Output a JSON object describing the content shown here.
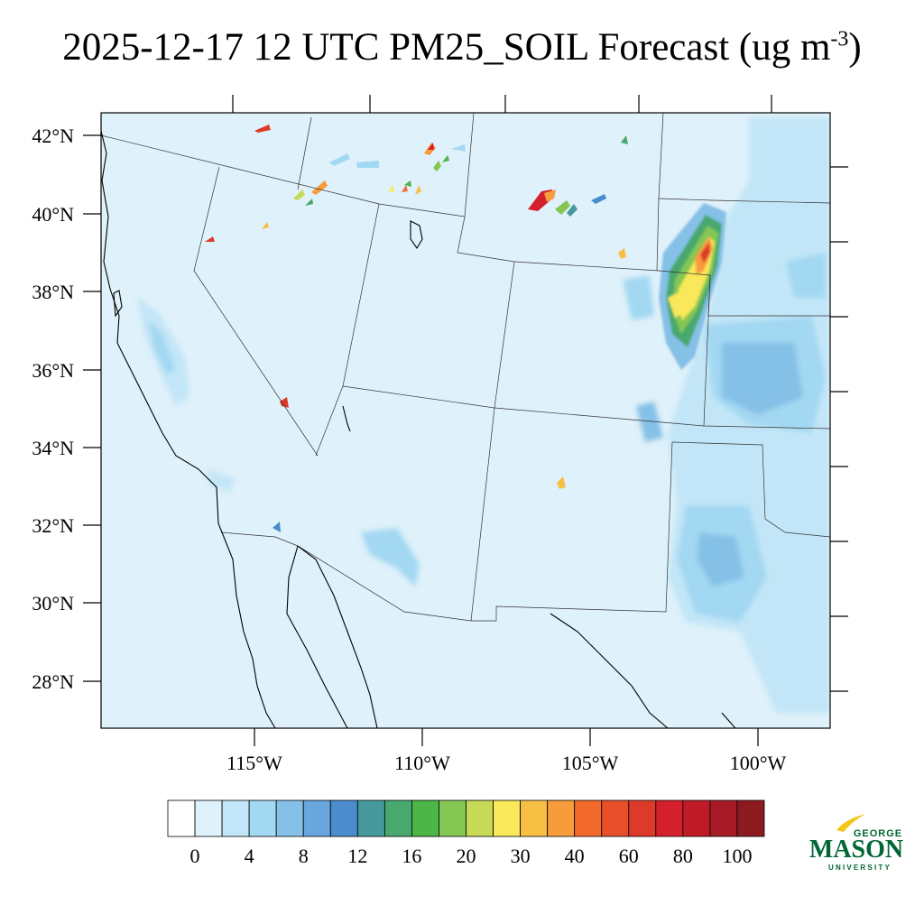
{
  "title": {
    "main": "2025-12-17 12 UTC PM25_SOIL Forecast (ug m",
    "superscript": "-3",
    "close": ")"
  },
  "map": {
    "lat_labels": [
      "42°N",
      "40°N",
      "38°N",
      "36°N",
      "34°N",
      "32°N",
      "30°N",
      "28°N"
    ],
    "lon_labels": [
      "115°W",
      "110°W",
      "105°W",
      "100°W"
    ],
    "background_color": "#dff1fa",
    "region": "Western United States and northern Mexico"
  },
  "colorbar": {
    "labels": [
      "0",
      "4",
      "8",
      "12",
      "16",
      "20",
      "30",
      "40",
      "60",
      "80",
      "100"
    ],
    "colors": [
      "#ffffff",
      "#dff1fa",
      "#c2e6f7",
      "#a3d8f2",
      "#85c0e6",
      "#68a6dc",
      "#4a8ccc",
      "#46999b",
      "#48a86e",
      "#4cb648",
      "#84c652",
      "#c6da58",
      "#f8e85a",
      "#f8bf45",
      "#f69c3c",
      "#f26a2c",
      "#e64f2a",
      "#de3a2a",
      "#d41f2c",
      "#bf1b27",
      "#a51a24",
      "#8c1a1f"
    ]
  },
  "logo": {
    "line1": "GEORGE",
    "line2": "MASON",
    "line3": "UNIVERSITY",
    "color": "#006633",
    "accent": "#f5c518"
  }
}
